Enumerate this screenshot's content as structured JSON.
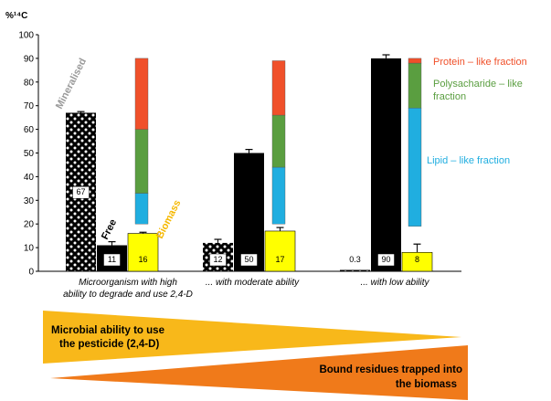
{
  "chart_data": {
    "type": "bar",
    "ylabel": "%¹⁴C",
    "ylim": [
      0,
      100
    ],
    "yticks": [
      "0",
      "10",
      "20",
      "30",
      "40",
      "50",
      "60",
      "70",
      "80",
      "90",
      "100"
    ],
    "categories": [
      [
        "Microorganism with high",
        "ability to degrade and use 2,4-D"
      ],
      [
        "... with moderate ability"
      ],
      [
        "... with low ability"
      ]
    ],
    "series": [
      {
        "name": "Mineralised",
        "color": "#000000",
        "pattern": "checker",
        "values": [
          67,
          12,
          0.3
        ],
        "labels": [
          "67",
          "12",
          "0.3"
        ],
        "errors": [
          0.5,
          1.5,
          0
        ]
      },
      {
        "name": "Free",
        "color": "#000000",
        "values": [
          11,
          50,
          90
        ],
        "labels": [
          "11",
          "50",
          "90"
        ],
        "errors": [
          1.5,
          1.5,
          1.5
        ]
      },
      {
        "name": "Biomass",
        "color": "#ffff00",
        "values": [
          16,
          17,
          8
        ],
        "labels": [
          "16",
          "17",
          "8"
        ],
        "errors": [
          0.5,
          1.5,
          3.5
        ]
      }
    ],
    "fractions": [
      {
        "name": "Protein – like fraction",
        "color": "#f0502a"
      },
      {
        "name": "Polysacharide – like fraction",
        "color": "#5a9e40"
      },
      {
        "name": "Lipid – like fraction",
        "color": "#20aee0"
      }
    ],
    "fraction_stacks": [
      {
        "lipid": [
          20,
          33
        ],
        "polysaccharide": [
          33,
          60
        ],
        "protein": [
          60,
          90
        ]
      },
      {
        "lipid": [
          20,
          44
        ],
        "polysaccharide": [
          44,
          66
        ],
        "protein": [
          66,
          89
        ]
      },
      {
        "lipid": [
          19,
          69
        ],
        "polysaccharide": [
          69,
          88
        ],
        "protein": [
          88,
          90
        ]
      }
    ],
    "bar_labels": {
      "mineralised": "Mineralised",
      "free": "Free",
      "biomass": "Biomass"
    },
    "legend": {
      "protein": "Protein – like fraction",
      "polysaccharide_1": "Polysacharide – like",
      "polysaccharide_2": "fraction",
      "lipid": "Lipid – like fraction"
    }
  },
  "triangles": {
    "top": {
      "line1": "Microbial ability to use",
      "line2": "the pesticide (2,4-D)",
      "color": "#f8b81a"
    },
    "bottom": {
      "line1": "Bound residues trapped into",
      "line2": "the biomass",
      "color": "#f07a1a"
    }
  },
  "colors": {
    "black": "#000000",
    "yellow": "#ffff00",
    "gray_label": "#9a9a9a",
    "biomass_label": "#f5b800",
    "protein": "#f0502a",
    "polysaccharide": "#5a9e40",
    "lipid": "#20aee0"
  }
}
